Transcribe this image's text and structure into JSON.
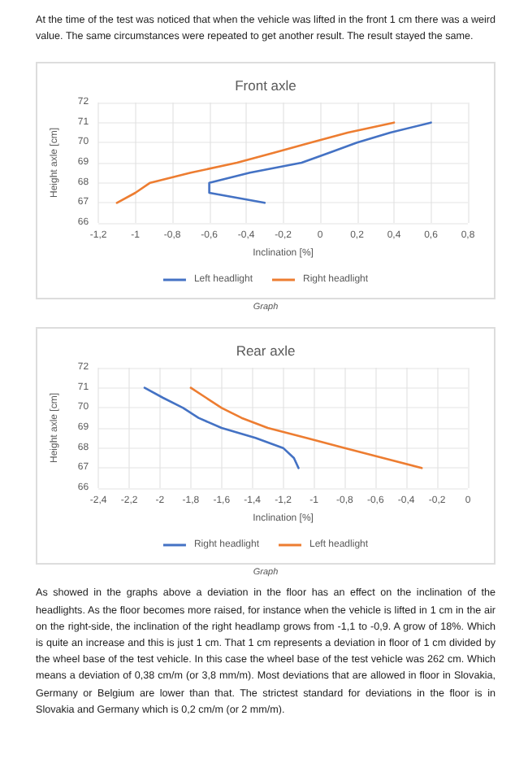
{
  "chart_data": [
    {
      "type": "line",
      "title": "Front axle",
      "xlabel": "Inclination [%]",
      "ylabel": "Height axle [cm]",
      "annotations": [
        "At the time of the test was noticed that when the vehicle was lifted in the front 1 cm there was a weird value. The same circumstances were repeated to get another result. The result stayed the same.",
        "Graph"
      ],
      "series": [
        {
          "name": "Left headlight",
          "color": "#4472c4",
          "x": [
            -0.3,
            -0.6,
            -0.6,
            -0.38,
            -0.1,
            0.05,
            0.2,
            0.38,
            0.6
          ],
          "values": [
            67,
            67.5,
            68,
            68.5,
            69,
            69.5,
            70,
            70.5,
            71
          ]
        },
        {
          "name": "Right headlight",
          "color": "#ed7d31",
          "x": [
            -1.1,
            -1.0,
            -0.92,
            -0.7,
            -0.45,
            -0.25,
            -0.05,
            0.15,
            0.4
          ],
          "values": [
            67,
            67.5,
            68,
            68.5,
            69,
            69.5,
            70,
            70.5,
            71
          ]
        }
      ],
      "xlim": [
        -1.2,
        0.8
      ],
      "xticks": [
        {
          "value": -1.2,
          "label": "-1,2"
        },
        -1,
        {
          "value": -0.8,
          "label": "-0,8"
        },
        {
          "value": -0.6,
          "label": "-0,6"
        },
        {
          "value": -0.4,
          "label": "-0,4"
        },
        {
          "value": -0.2,
          "label": "-0,2"
        },
        0,
        {
          "value": 0.2,
          "label": "0,2"
        },
        {
          "value": 0.4,
          "label": "0,4"
        },
        {
          "value": 0.6,
          "label": "0,6"
        },
        {
          "value": 0.8,
          "label": "0,8"
        }
      ],
      "ylim": [
        66,
        72
      ],
      "yticks": [
        66,
        67,
        68,
        69,
        70,
        71,
        72
      ],
      "grid": true,
      "legend": "bottom"
    },
    {
      "type": "line",
      "title": "Rear axle",
      "xlabel": "Inclination [%]",
      "ylabel": "Height axle [cm]",
      "annotations": [
        "Graph",
        "As showed in the graphs above a deviation in the floor has an effect on the inclination of the headlights. As the floor becomes more raised, for instance when the vehicle is lifted in 1 cm in the air on the right-side, the inclination of the right headlamp grows from -1,1 to -0,9. A grow of 18%. Which is quite an increase and this is just 1 cm. That 1 cm represents a deviation in floor of 1 cm divided by the wheel base of the test vehicle. In this case the wheel base of the test vehicle was 262 cm. Which means a deviation of 0,38 cm/m (or 3,8 mm/m). Most deviations that are allowed in floor in Slovakia, Germany or Belgium are lower than that. The strictest standard for deviations in the floor is in Slovakia and Germany which is 0,2 cm/m (or 2 mm/m)."
      ],
      "series": [
        {
          "name": "Right headlight",
          "color": "#4472c4",
          "x": [
            -2.1,
            -1.98,
            -1.85,
            -1.75,
            -1.6,
            -1.38,
            -1.2,
            -1.13,
            -1.1
          ],
          "values": [
            71,
            70.5,
            70,
            69.5,
            69,
            68.5,
            68,
            67.5,
            67
          ]
        },
        {
          "name": "Left headlight",
          "color": "#ed7d31",
          "x": [
            -1.8,
            -1.7,
            -1.6,
            -1.47,
            -1.3,
            -1.05,
            -0.8,
            -0.55,
            -0.3
          ],
          "values": [
            71,
            70.5,
            70,
            69.5,
            69,
            68.5,
            68,
            67.5,
            67
          ]
        }
      ],
      "xlim": [
        -2.4,
        0
      ],
      "xticks": [
        {
          "value": -2.4,
          "label": "-2,4"
        },
        {
          "value": -2.2,
          "label": "-2,2"
        },
        -2,
        {
          "value": -1.8,
          "label": "-1,8"
        },
        {
          "value": -1.6,
          "label": "-1,6"
        },
        {
          "value": -1.4,
          "label": "-1,4"
        },
        {
          "value": -1.2,
          "label": "-1,2"
        },
        -1,
        {
          "value": -0.8,
          "label": "-0,8"
        },
        {
          "value": -0.6,
          "label": "-0,6"
        },
        {
          "value": -0.4,
          "label": "-0,4"
        },
        {
          "value": -0.2,
          "label": "-0,2"
        },
        0
      ],
      "ylim": [
        66,
        72
      ],
      "yticks": [
        66,
        67,
        68,
        69,
        70,
        71,
        72
      ],
      "grid": true,
      "legend": "bottom"
    }
  ]
}
